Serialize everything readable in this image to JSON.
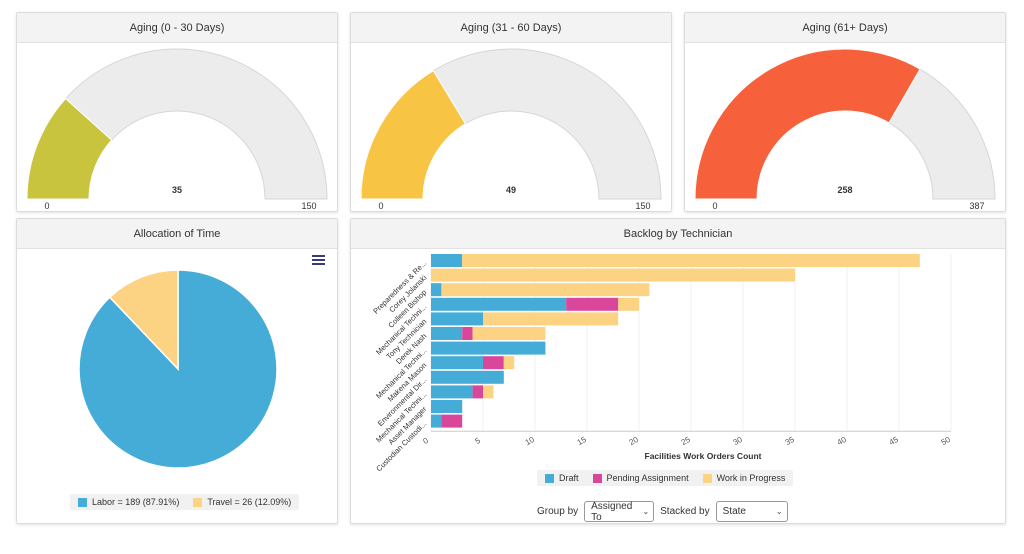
{
  "gauges": [
    {
      "title": "Aging (0 - 30 Days)",
      "value": 35,
      "min": 0,
      "max": 150,
      "value_label": "35",
      "min_label": "0",
      "max_label": "150",
      "color": "#c9c43e"
    },
    {
      "title": "Aging (31 - 60 Days)",
      "value": 49,
      "min": 0,
      "max": 150,
      "value_label": "49",
      "min_label": "0",
      "max_label": "150",
      "color": "#f7c543"
    },
    {
      "title": "Aging (61+ Days)",
      "value": 258,
      "min": 0,
      "max": 387,
      "value_label": "258",
      "min_label": "0",
      "max_label": "387",
      "color": "#f6603a"
    }
  ],
  "allocation": {
    "title": "Allocation of Time",
    "menu_icon": "hamburger-menu-icon",
    "legend": [
      {
        "label": "Labor = 189 (87.91%)",
        "color": "#44acd6"
      },
      {
        "label": "Travel = 26 (12.09%)",
        "color": "#fcd283"
      }
    ]
  },
  "backlog": {
    "title": "Backlog by Technician",
    "legend": [
      {
        "label": "Draft",
        "color": "#44acd6"
      },
      {
        "label": "Pending Assignment",
        "color": "#d9479a"
      },
      {
        "label": "Work in Progress",
        "color": "#fcd283"
      }
    ],
    "group_by_label": "Group by",
    "group_by_value": "Assigned To",
    "stacked_by_label": "Stacked by",
    "stacked_by_value": "State"
  },
  "chart_data": [
    {
      "type": "pie",
      "title": "Allocation of Time",
      "labels": [
        "Labor",
        "Travel"
      ],
      "values": [
        189,
        26
      ],
      "percentages": [
        87.91,
        12.09
      ],
      "colors": [
        "#44acd6",
        "#fcd283"
      ],
      "legend_position": "bottom"
    },
    {
      "type": "bar",
      "orientation": "horizontal",
      "stacked": true,
      "title": "Backlog by Technician",
      "xlabel": "Facilities Work Orders Count",
      "xlim": [
        0,
        50
      ],
      "xticks": [
        0,
        5,
        10,
        15,
        20,
        25,
        30,
        35,
        40,
        45,
        50
      ],
      "categories": [
        "Preparedness & Re...",
        "Corey Jolanski",
        "Colleen Bishop",
        "Mechanical Techni...",
        "Tony Technician",
        "Derek Nash",
        "Mechanical Techni...",
        "Makena Mason",
        "Environmental Dir...",
        "Mechanical Techni...",
        "Asset Manager",
        "Custodian Custodi..."
      ],
      "series": [
        {
          "name": "Draft",
          "color": "#44acd6",
          "values": [
            3,
            0,
            1,
            13,
            5,
            3,
            11,
            5,
            7,
            4,
            3,
            1
          ]
        },
        {
          "name": "Pending Assignment",
          "color": "#d9479a",
          "values": [
            0,
            0,
            0,
            5,
            0,
            1,
            0,
            2,
            0,
            1,
            0,
            2
          ]
        },
        {
          "name": "Work in Progress",
          "color": "#fcd283",
          "values": [
            44,
            35,
            20,
            2,
            13,
            7,
            0,
            1,
            0,
            1,
            0,
            0
          ]
        }
      ],
      "legend_position": "bottom"
    }
  ]
}
